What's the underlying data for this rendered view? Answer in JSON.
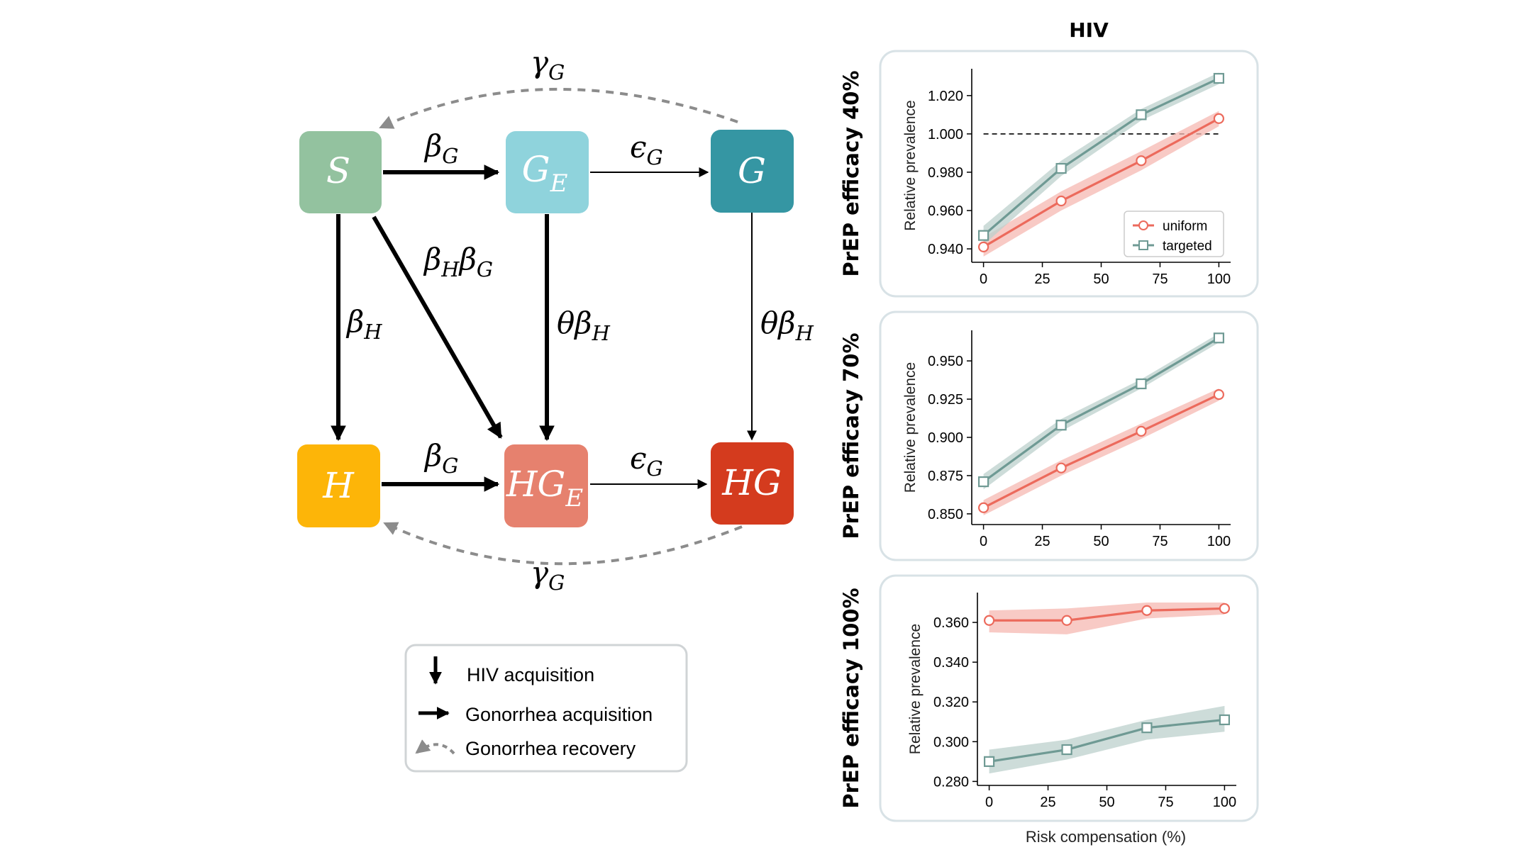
{
  "diagram": {
    "nodes": {
      "S": {
        "label": "S",
        "color": "#93c29f"
      },
      "GE": {
        "label": "G",
        "sub": "E",
        "color": "#8fd3dc"
      },
      "G": {
        "label": "G",
        "color": "#3596a3"
      },
      "H": {
        "label": "H",
        "color": "#fdb508"
      },
      "HGE": {
        "label": "HG",
        "sub": "E",
        "color": "#e6816e"
      },
      "HG": {
        "label": "HG",
        "color": "#d43b1e"
      }
    },
    "edges": {
      "gamma_top": {
        "main": "γ",
        "sub": "G"
      },
      "gamma_bottom": {
        "main": "γ",
        "sub": "G"
      },
      "beta_g_top": {
        "main": "β",
        "sub": "G"
      },
      "beta_g_bottom": {
        "main": "β",
        "sub": "G"
      },
      "eps_g_top": {
        "main": "ϵ",
        "sub": "G"
      },
      "eps_g_bottom": {
        "main": "ϵ",
        "sub": "G"
      },
      "beta_h": {
        "main": "β",
        "sub": "H"
      },
      "beta_h_beta_g": {
        "main1": "β",
        "sub1": "H",
        "main2": "β",
        "sub2": "G"
      },
      "theta_beta_h_mid": {
        "main": "θβ",
        "sub": "H"
      },
      "theta_beta_h_right": {
        "main": "θβ",
        "sub": "H"
      }
    },
    "legend": {
      "hiv": "HIV acquisition",
      "gon_acq": "Gonorrhea acquisition",
      "gon_rec": "Gonorrhea recovery"
    }
  },
  "colors": {
    "uniform": "#ec6a5c",
    "targeted": "#6f9a94",
    "uniform_band": "#f6b8b1",
    "targeted_band": "#bcd0cc",
    "panel_border": "#d8e2e6",
    "arrow_gray": "#8c8c8c"
  },
  "figure": {
    "column_title": "HIV",
    "xlabel": "Risk compensation (%)"
  },
  "chart_data": [
    {
      "type": "line",
      "row_label": "PrEP efficacy 40%",
      "ylabel": "Relative prevalence",
      "x": [
        0,
        33,
        67,
        100
      ],
      "xticks": [
        "0",
        "25",
        "50",
        "75",
        "100"
      ],
      "xtick_values": [
        0,
        25,
        50,
        75,
        100
      ],
      "xlim": [
        -5,
        105
      ],
      "ylim": [
        0.933,
        1.034
      ],
      "yticks": [
        "0.940",
        "0.960",
        "0.980",
        "1.000",
        "1.020"
      ],
      "ytick_values": [
        0.94,
        0.96,
        0.98,
        1.0,
        1.02
      ],
      "reference_line": 1.0,
      "legend": {
        "position": "lower right",
        "entries": [
          "uniform",
          "targeted"
        ]
      },
      "series": [
        {
          "name": "uniform",
          "values": [
            0.941,
            0.965,
            0.986,
            1.008
          ],
          "lower": [
            0.936,
            0.96,
            0.981,
            1.004
          ],
          "upper": [
            0.946,
            0.97,
            0.991,
            1.012
          ]
        },
        {
          "name": "targeted",
          "values": [
            0.947,
            0.982,
            1.01,
            1.029
          ],
          "lower": [
            0.942,
            0.978,
            1.007,
            1.026
          ],
          "upper": [
            0.952,
            0.986,
            1.013,
            1.032
          ]
        }
      ]
    },
    {
      "type": "line",
      "row_label": "PrEP efficacy 70%",
      "ylabel": "Relative prevalence",
      "x": [
        0,
        33,
        67,
        100
      ],
      "xticks": [
        "0",
        "25",
        "50",
        "75",
        "100"
      ],
      "xtick_values": [
        0,
        25,
        50,
        75,
        100
      ],
      "xlim": [
        -5,
        105
      ],
      "ylim": [
        0.843,
        0.97
      ],
      "yticks": [
        "0.850",
        "0.875",
        "0.900",
        "0.925",
        "0.950"
      ],
      "ytick_values": [
        0.85,
        0.875,
        0.9,
        0.925,
        0.95
      ],
      "series": [
        {
          "name": "uniform",
          "values": [
            0.854,
            0.88,
            0.904,
            0.928
          ],
          "lower": [
            0.849,
            0.875,
            0.899,
            0.924
          ],
          "upper": [
            0.859,
            0.885,
            0.909,
            0.932
          ]
        },
        {
          "name": "targeted",
          "values": [
            0.871,
            0.908,
            0.935,
            0.965
          ],
          "lower": [
            0.866,
            0.904,
            0.932,
            0.962
          ],
          "upper": [
            0.876,
            0.912,
            0.938,
            0.968
          ]
        }
      ]
    },
    {
      "type": "line",
      "row_label": "PrEP efficacy 100%",
      "ylabel": "Relative prevalence",
      "x": [
        0,
        33,
        67,
        100
      ],
      "xticks": [
        "0",
        "25",
        "50",
        "75",
        "100"
      ],
      "xtick_values": [
        0,
        25,
        50,
        75,
        100
      ],
      "xlim": [
        -5,
        105
      ],
      "ylim": [
        0.278,
        0.375
      ],
      "yticks": [
        "0.280",
        "0.300",
        "0.320",
        "0.340",
        "0.360"
      ],
      "ytick_values": [
        0.28,
        0.3,
        0.32,
        0.34,
        0.36
      ],
      "series": [
        {
          "name": "uniform",
          "values": [
            0.361,
            0.361,
            0.366,
            0.367
          ],
          "lower": [
            0.355,
            0.354,
            0.362,
            0.364
          ],
          "upper": [
            0.366,
            0.367,
            0.37,
            0.37
          ]
        },
        {
          "name": "targeted",
          "values": [
            0.29,
            0.296,
            0.307,
            0.311
          ],
          "lower": [
            0.284,
            0.291,
            0.301,
            0.305
          ],
          "upper": [
            0.296,
            0.301,
            0.311,
            0.318
          ]
        }
      ]
    }
  ]
}
